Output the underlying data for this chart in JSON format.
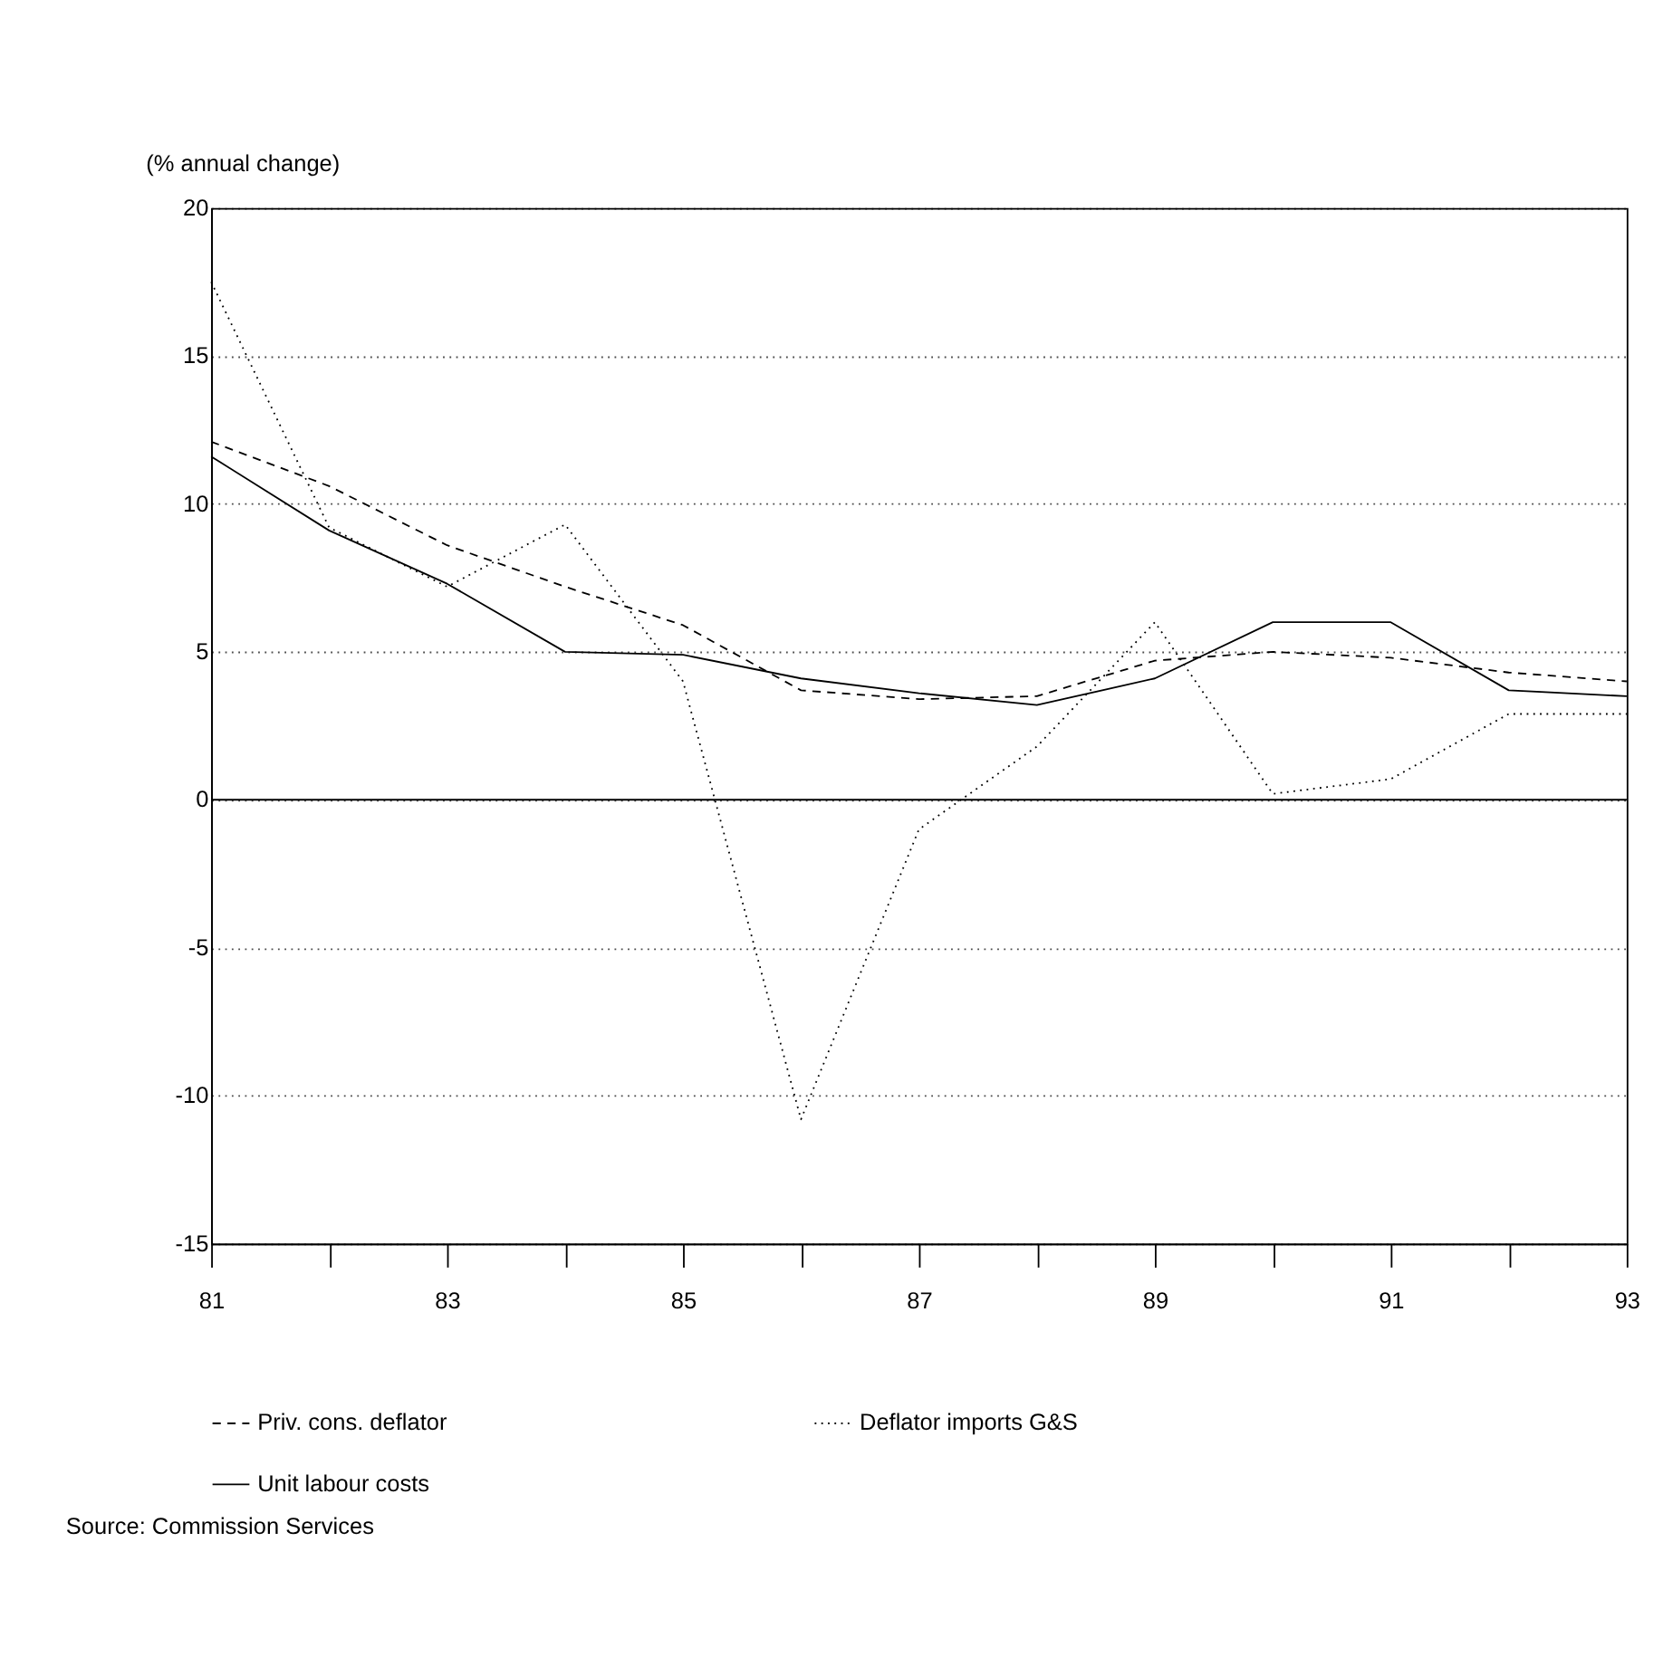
{
  "chart_data": {
    "type": "line",
    "ylabel": "(% annual change)",
    "x": [
      81,
      82,
      83,
      84,
      85,
      86,
      87,
      88,
      89,
      90,
      91,
      92,
      93
    ],
    "series": [
      {
        "name": "Priv. cons. deflator",
        "color": "#000000",
        "line_style": "dashed",
        "values": [
          12.1,
          10.6,
          8.6,
          7.2,
          5.9,
          3.7,
          3.4,
          3.5,
          4.7,
          5.0,
          4.8,
          4.3,
          4.0
        ]
      },
      {
        "name": "Deflator imports G&S",
        "color": "#000000",
        "line_style": "dotted",
        "values": [
          17.5,
          9.2,
          7.2,
          9.3,
          4.0,
          -10.8,
          -1.0,
          1.8,
          6.0,
          0.2,
          0.7,
          2.9,
          2.9
        ]
      },
      {
        "name": "Unit labour costs",
        "color": "#000000",
        "line_style": "solid",
        "values": [
          11.6,
          9.1,
          7.3,
          5.0,
          4.9,
          4.1,
          3.6,
          3.2,
          4.1,
          6.0,
          6.0,
          3.7,
          3.5
        ]
      }
    ],
    "xlim": [
      81,
      93
    ],
    "xticks": [
      81,
      {
        "value": 82,
        "label": null
      },
      83,
      {
        "value": 84,
        "label": null
      },
      85,
      {
        "value": 86,
        "label": null
      },
      87,
      {
        "value": 88,
        "label": null
      },
      89,
      {
        "value": 90,
        "label": null
      },
      91,
      {
        "value": 92,
        "label": null
      },
      93
    ],
    "ylim": [
      -15,
      20
    ],
    "yticks": [
      -15,
      -10,
      -5,
      0,
      5,
      10,
      15,
      20
    ],
    "grid": "y",
    "legend": "bottom",
    "marker": "none",
    "ref_lines": [
      {
        "axis": "y",
        "value": 0,
        "label": null,
        "color": "#000000",
        "line_style": "solid"
      }
    ],
    "annotations": [
      "Source: Commission Services"
    ]
  }
}
